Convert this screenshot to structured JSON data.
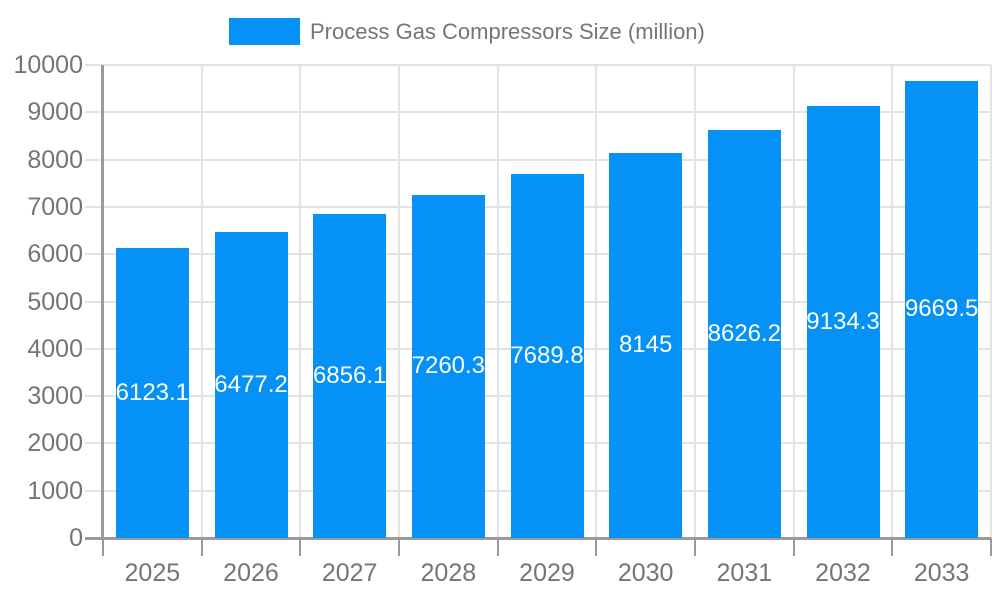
{
  "legend": {
    "label": "Process Gas Compressors Size (million)"
  },
  "chart_data": {
    "type": "bar",
    "title": "Process Gas Compressors Size (million)",
    "categories": [
      "2025",
      "2026",
      "2027",
      "2028",
      "2029",
      "2030",
      "2031",
      "2032",
      "2033"
    ],
    "values": [
      6123.1,
      6477.2,
      6856.1,
      7260.3,
      7689.8,
      8145,
      8626.2,
      9134.3,
      9669.5
    ],
    "value_labels": [
      "6123.1",
      "6477.2",
      "6856.1",
      "7260.3",
      "7689.8",
      "8145",
      "8626.2",
      "9134.3",
      "9669.5"
    ],
    "yticks": [
      0,
      1000,
      2000,
      3000,
      4000,
      5000,
      6000,
      7000,
      8000,
      9000,
      10000
    ],
    "ylim": [
      0,
      10000
    ],
    "xlabel": "",
    "ylabel": "",
    "grid": true,
    "legend_position": "top",
    "colors": {
      "bar": "#0591F5",
      "grid": "#E3E3E3",
      "axis": "#9A9A9A",
      "tick": "#9A9A9A",
      "text": "#757575",
      "value_label": "#FFFFFF",
      "background": "#FFFFFF"
    }
  }
}
